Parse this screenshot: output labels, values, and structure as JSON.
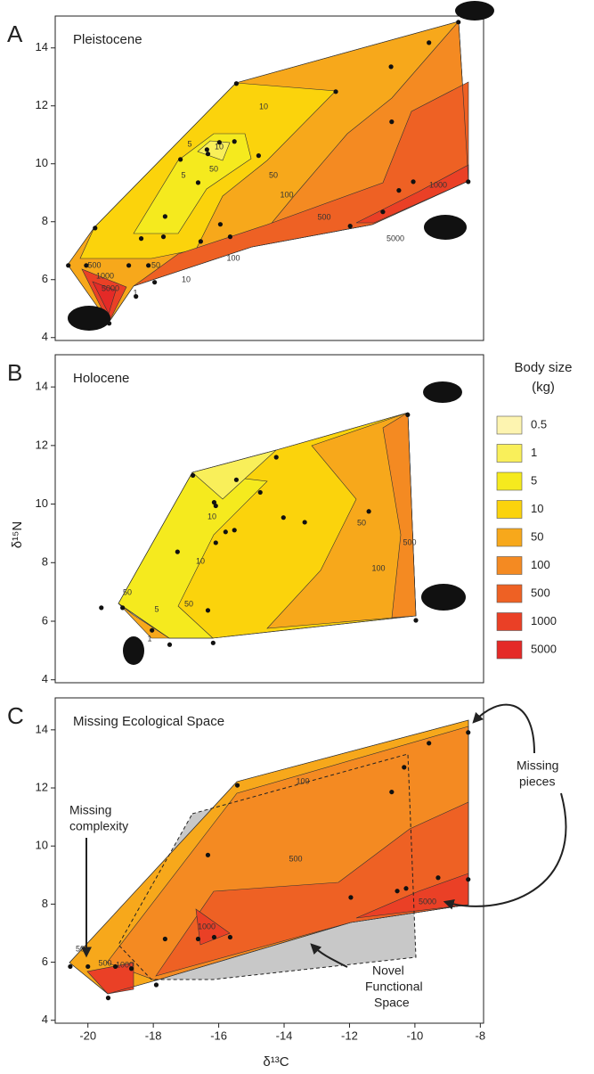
{
  "chart_data": {
    "type": "contour",
    "x_label": "δ¹³C",
    "y_label": "δ¹⁵N",
    "xlim": [
      -21,
      -7.9
    ],
    "ylim": [
      3.9,
      15.1
    ],
    "xticks": [
      -20,
      -18,
      -16,
      -14,
      -12,
      -10,
      -8
    ],
    "yticks": [
      4,
      6,
      8,
      10,
      12,
      14
    ],
    "legend": {
      "title": [
        "Body size",
        "(kg)"
      ],
      "labels": [
        "0.5",
        "1",
        "5",
        "10",
        "50",
        "100",
        "500",
        "1000",
        "5000"
      ],
      "colors": [
        "#fdf4b0",
        "#f9ef5a",
        "#f5ea1e",
        "#fbd30c",
        "#f7a81b",
        "#f48a22",
        "#ee6124",
        "#ea4026",
        "#e42a27"
      ]
    },
    "panels": [
      {
        "letter": "A",
        "title": "Pleistocene",
        "points": {
          "x": [
            -20.6,
            -19.78,
            -15.46,
            -12.42,
            -10.73,
            -9.57,
            -8.67,
            -10.71,
            -14.78,
            -15.98,
            -16.36,
            -15.52,
            -16.33,
            -16.63,
            -17.17,
            -17.64,
            -17.69,
            -18.37,
            -18.75,
            -20.05,
            -18.15,
            -17.96,
            -18.53,
            -19.35,
            -15.95,
            -15.65,
            -16.55,
            -10.49,
            -10.05,
            -8.37,
            -11.98,
            -10.98
          ],
          "y": [
            6.49,
            7.78,
            12.77,
            12.49,
            13.35,
            14.18,
            14.89,
            11.45,
            10.28,
            10.74,
            10.49,
            10.77,
            10.34,
            9.35,
            10.15,
            8.18,
            7.48,
            7.42,
            6.49,
            6.49,
            6.49,
            5.91,
            5.42,
            4.49,
            7.91,
            7.48,
            7.32,
            9.08,
            9.38,
            9.38,
            7.85,
            8.34
          ]
        },
        "contour_labels": [
          "10",
          "5",
          "5",
          "10",
          "50",
          "50",
          "100",
          "500",
          "1000",
          "500",
          "5000",
          "1000",
          "5000",
          "50",
          "1",
          "10",
          "100"
        ]
      },
      {
        "letter": "B",
        "title": "Holocene",
        "points": {
          "x": [
            -16.79,
            -16.14,
            -16.09,
            -15.79,
            -15.52,
            -16.09,
            -17.26,
            -15.46,
            -14.24,
            -14.73,
            -14.02,
            -13.37,
            -11.41,
            -10.22,
            -9.97,
            -16.17,
            -16.33,
            -18.94,
            -19.59,
            -18.04,
            -17.5
          ],
          "y": [
            10.98,
            10.06,
            9.94,
            9.05,
            9.11,
            8.68,
            8.37,
            10.83,
            11.6,
            10.4,
            9.54,
            9.38,
            9.75,
            13.05,
            6.03,
            5.26,
            6.37,
            6.46,
            6.46,
            5.69,
            5.2
          ]
        },
        "contour_labels": [
          "10",
          "10",
          "50",
          "50",
          "100",
          "500",
          "50",
          "5",
          "1"
        ]
      },
      {
        "letter": "C",
        "title": "Missing Ecological Space",
        "points": {
          "x": [
            -20.54,
            -20,
            -19.38,
            -17.91,
            -19.16,
            -18.67,
            -17.64,
            -16.63,
            -16.33,
            -16.14,
            -15.65,
            -15.43,
            -10.33,
            -9.57,
            -8.37,
            -10.71,
            -10.54,
            -10.27,
            -8.37,
            -11.96,
            -9.29
          ],
          "y": [
            5.85,
            5.85,
            4.77,
            5.22,
            5.85,
            5.78,
            6.8,
            6.8,
            9.69,
            6.86,
            6.86,
            12.09,
            12.71,
            13.54,
            13.91,
            11.86,
            8.45,
            8.54,
            8.85,
            8.23,
            8.91
          ]
        },
        "contour_labels": [
          "100",
          "500",
          "1000",
          "5000",
          "50",
          "500",
          "1000"
        ],
        "annotations": [
          [
            "Missing",
            "complexity"
          ],
          [
            "Missing",
            "pieces"
          ],
          [
            "Novel",
            "Functional",
            "Space"
          ]
        ]
      }
    ]
  }
}
